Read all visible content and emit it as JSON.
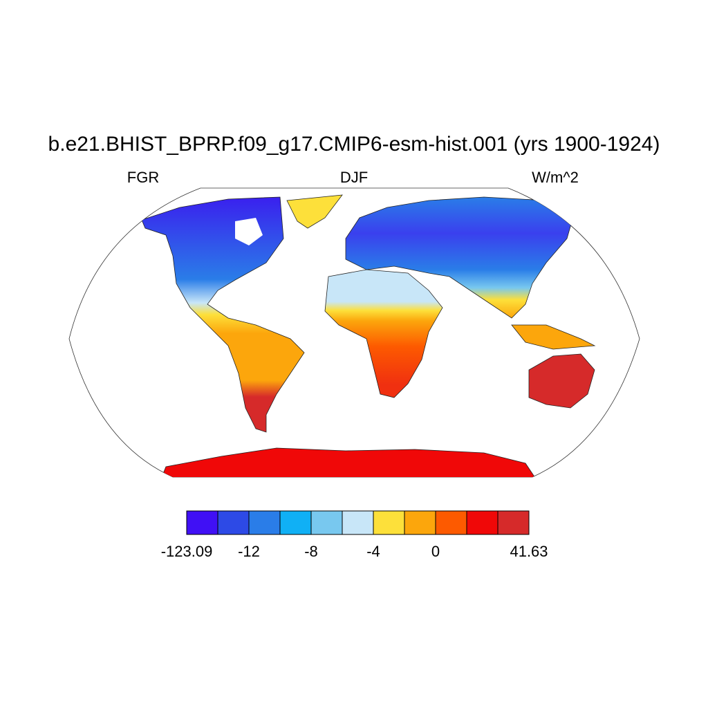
{
  "title": "b.e21.BHIST_BPRP.f09_g17.CMIP6-esm-hist.001 (yrs 1900-1924)",
  "left_subtitle": "FGR",
  "center_subtitle": "DJF",
  "right_subtitle": "W/m^2",
  "colorbar": {
    "colors": [
      "#4010f5",
      "#2d4ae6",
      "#2a7de8",
      "#10b0f5",
      "#78c8ef",
      "#c8e6f8",
      "#fde03a",
      "#fca60c",
      "#fd5a00",
      "#f00808",
      "#d62a2a"
    ],
    "levels": [
      -123.09,
      null,
      -12,
      null,
      -8,
      null,
      -4,
      null,
      0,
      null,
      null,
      41.63
    ]
  }
}
